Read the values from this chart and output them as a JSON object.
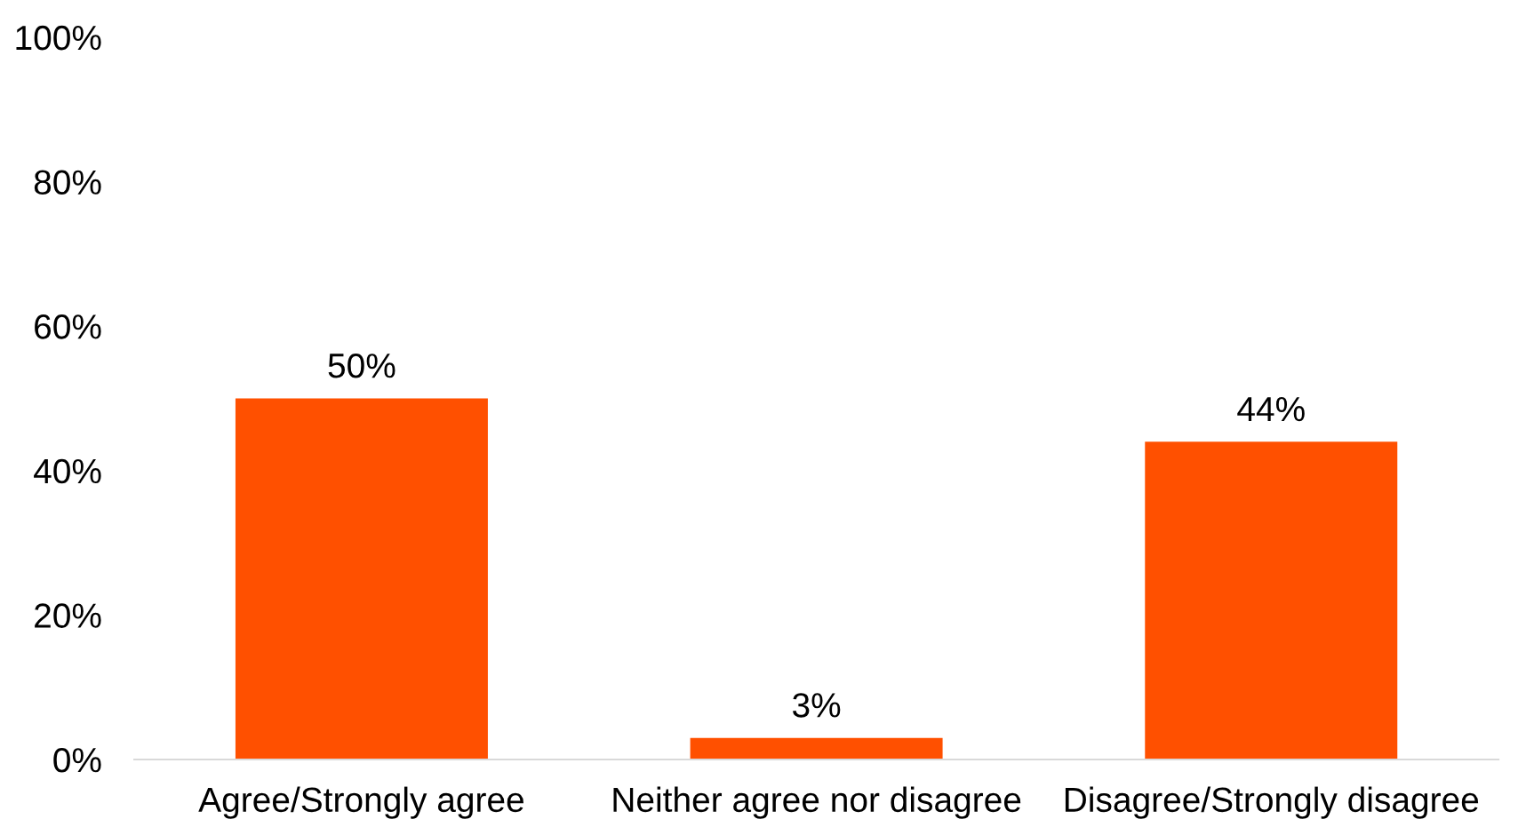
{
  "chart_data": {
    "type": "bar",
    "categories": [
      "Agree/Strongly agree",
      "Neither agree nor disagree",
      "Disagree/Strongly disagree"
    ],
    "values": [
      50,
      3,
      44
    ],
    "color": "#ff5000",
    "value_labels": [
      "50%",
      "3%",
      "44%"
    ],
    "ylim": [
      0,
      100
    ],
    "yticks": [
      {
        "value": 0,
        "label": "0%"
      },
      {
        "value": 20,
        "label": "20%"
      },
      {
        "value": 40,
        "label": "40%"
      },
      {
        "value": 60,
        "label": "60%"
      },
      {
        "value": 80,
        "label": "80%"
      },
      {
        "value": 100,
        "label": "100%"
      }
    ],
    "grid": false
  }
}
